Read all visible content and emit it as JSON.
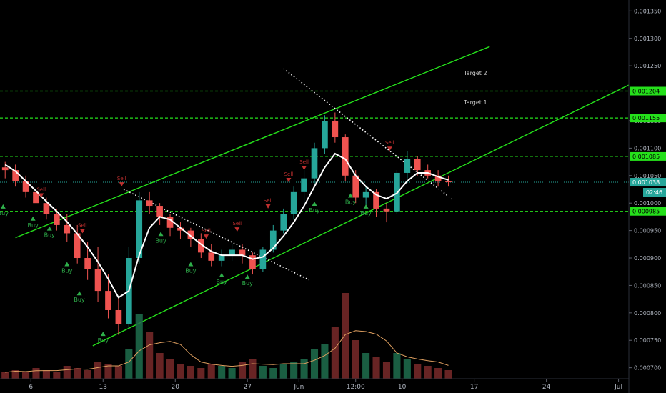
{
  "chart_data": {
    "type": "candlestick",
    "y_range": [
      0.00068,
      0.00137
    ],
    "x_range": [
      0,
      61
    ],
    "y_ticks": [
      "0.001350",
      "0.001300",
      "0.001250",
      "0.001150",
      "0.001100",
      "0.001050",
      "0.001000",
      "0.000950",
      "0.000900",
      "0.000850",
      "0.000800",
      "0.000750",
      "0.000700"
    ],
    "x_ticks": [
      {
        "label": "6",
        "x": 3
      },
      {
        "label": "13",
        "x": 10
      },
      {
        "label": "20",
        "x": 17
      },
      {
        "label": "27",
        "x": 24
      },
      {
        "label": "Jun",
        "x": 29
      },
      {
        "label": "12:00",
        "x": 34.5
      },
      {
        "label": "10",
        "x": 39
      },
      {
        "label": "17",
        "x": 46
      },
      {
        "label": "24",
        "x": 53
      },
      {
        "label": "Jul",
        "x": 60
      }
    ],
    "levels": [
      {
        "value": 0.001204,
        "label": "0.001204",
        "color": "#25e01b"
      },
      {
        "value": 0.001155,
        "label": "0.001155",
        "color": "#25e01b"
      },
      {
        "value": 0.001085,
        "label": "0.001085",
        "color": "#25e01b"
      },
      {
        "value": 0.000985,
        "label": "0.000985",
        "color": "#25e01b"
      }
    ],
    "current_price": {
      "value": 0.001038,
      "label": "0.001038",
      "countdown": "02:46",
      "color": "#26a69a"
    },
    "targets": [
      {
        "label": "Target 2",
        "x": 45,
        "y": 0.001233
      },
      {
        "label": "Target 1",
        "x": 45,
        "y": 0.00118
      }
    ],
    "channel_lines": [
      {
        "x1": 1.5,
        "y1": 0.000937,
        "x2": 47.5,
        "y2": 0.001285
      },
      {
        "x1": 9,
        "y1": 0.00074,
        "x2": 61,
        "y2": 0.001215
      }
    ],
    "resistance_lines": [
      {
        "x1": 12,
        "y1": 0.001025,
        "x2": 30,
        "y2": 0.00086
      },
      {
        "x1": 27.5,
        "y1": 0.001245,
        "x2": 44,
        "y2": 0.001005
      }
    ],
    "ohlc": [
      [
        0.001065,
        0.001075,
        0.001045,
        0.00106
      ],
      [
        0.00106,
        0.00107,
        0.00103,
        0.00104
      ],
      [
        0.00104,
        0.00105,
        0.00101,
        0.00102
      ],
      [
        0.00102,
        0.00103,
        0.00099,
        0.001
      ],
      [
        0.001,
        0.00101,
        0.00097,
        0.00098
      ],
      [
        0.00098,
        0.00099,
        0.00095,
        0.00096
      ],
      [
        0.00096,
        0.00098,
        0.00093,
        0.000945
      ],
      [
        0.000945,
        0.00096,
        0.00089,
        0.0009
      ],
      [
        0.0009,
        0.00093,
        0.00086,
        0.00088
      ],
      [
        0.00088,
        0.00092,
        0.00082,
        0.00084
      ],
      [
        0.00084,
        0.00087,
        0.00079,
        0.000805
      ],
      [
        0.000805,
        0.00083,
        0.00076,
        0.00078
      ],
      [
        0.00078,
        0.00092,
        0.00077,
        0.0009
      ],
      [
        0.0009,
        0.00102,
        0.00089,
        0.001005
      ],
      [
        0.001005,
        0.00102,
        0.00098,
        0.000995
      ],
      [
        0.000995,
        0.001,
        0.00096,
        0.000975
      ],
      [
        0.000975,
        0.00098,
        0.00094,
        0.000955
      ],
      [
        0.000955,
        0.000965,
        0.000935,
        0.00095
      ],
      [
        0.00095,
        0.000955,
        0.00092,
        0.000935
      ],
      [
        0.000935,
        0.000945,
        0.0009,
        0.00091
      ],
      [
        0.00091,
        0.000925,
        0.000885,
        0.000895
      ],
      [
        0.000895,
        0.000915,
        0.000885,
        0.000905
      ],
      [
        0.000905,
        0.000925,
        0.000895,
        0.000915
      ],
      [
        0.000915,
        0.000925,
        0.00089,
        0.000905
      ],
      [
        0.000905,
        0.00091,
        0.00087,
        0.00088
      ],
      [
        0.00088,
        0.00092,
        0.000875,
        0.000915
      ],
      [
        0.000915,
        0.00096,
        0.00091,
        0.00095
      ],
      [
        0.00095,
        0.00099,
        0.000945,
        0.00098
      ],
      [
        0.00098,
        0.00103,
        0.00097,
        0.00102
      ],
      [
        0.00102,
        0.00106,
        0.001,
        0.001045
      ],
      [
        0.001045,
        0.00111,
        0.001035,
        0.0011
      ],
      [
        0.0011,
        0.00116,
        0.00109,
        0.00115
      ],
      [
        0.00115,
        0.001165,
        0.00111,
        0.00112
      ],
      [
        0.00112,
        0.001125,
        0.00104,
        0.00105
      ],
      [
        0.00105,
        0.00106,
        0.001,
        0.00101
      ],
      [
        0.00101,
        0.00103,
        0.000995,
        0.00102
      ],
      [
        0.00102,
        0.001025,
        0.000975,
        0.00099
      ],
      [
        0.00099,
        0.001,
        0.000965,
        0.000985
      ],
      [
        0.000985,
        0.00106,
        0.00098,
        0.001055
      ],
      [
        0.001055,
        0.001095,
        0.001045,
        0.00108
      ],
      [
        0.00108,
        0.001085,
        0.00105,
        0.00106
      ],
      [
        0.00106,
        0.00107,
        0.001045,
        0.00105
      ],
      [
        0.00105,
        0.00106,
        0.00103,
        0.00104
      ],
      [
        0.00104,
        0.00105,
        0.00103,
        0.001038
      ]
    ],
    "ma_line": [
      [
        0,
        0.00107
      ],
      [
        1,
        0.001058
      ],
      [
        2,
        0.00104
      ],
      [
        3,
        0.001022
      ],
      [
        4,
        0.001003
      ],
      [
        5,
        0.000985
      ],
      [
        6,
        0.000966
      ],
      [
        7,
        0.000944
      ],
      [
        8,
        0.00092
      ],
      [
        9,
        0.000893
      ],
      [
        10,
        0.000862
      ],
      [
        11,
        0.000828
      ],
      [
        12,
        0.00084
      ],
      [
        13,
        0.000905
      ],
      [
        14,
        0.000955
      ],
      [
        15,
        0.000975
      ],
      [
        16,
        0.00097
      ],
      [
        17,
        0.000955
      ],
      [
        18,
        0.00094
      ],
      [
        19,
        0.000925
      ],
      [
        20,
        0.000912
      ],
      [
        21,
        0.000905
      ],
      [
        22,
        0.000905
      ],
      [
        23,
        0.000905
      ],
      [
        24,
        0.000898
      ],
      [
        25,
        0.000902
      ],
      [
        26,
        0.000918
      ],
      [
        27,
        0.00094
      ],
      [
        28,
        0.000965
      ],
      [
        29,
        0.000995
      ],
      [
        30,
        0.00103
      ],
      [
        31,
        0.001065
      ],
      [
        32,
        0.00109
      ],
      [
        33,
        0.00108
      ],
      [
        34,
        0.00105
      ],
      [
        35,
        0.00103
      ],
      [
        36,
        0.001015
      ],
      [
        37,
        0.001008
      ],
      [
        38,
        0.001018
      ],
      [
        39,
        0.00104
      ],
      [
        40,
        0.001055
      ],
      [
        41,
        0.001055
      ],
      [
        42,
        0.001048
      ],
      [
        43,
        0.001042
      ]
    ],
    "volume": [
      3,
      4,
      3,
      5,
      4,
      3,
      6,
      5,
      4,
      8,
      7,
      6,
      14,
      30,
      22,
      12,
      9,
      7,
      6,
      5,
      7,
      6,
      5,
      8,
      9,
      6,
      5,
      7,
      8,
      9,
      14,
      16,
      24,
      40,
      18,
      12,
      10,
      8,
      12,
      9,
      7,
      6,
      5,
      4
    ],
    "signals": [
      {
        "type": "buy",
        "label": "Buy",
        "x": 0.3,
        "y": 0.00099
      },
      {
        "type": "buy",
        "label": "Buy",
        "x": 3.2,
        "y": 0.000968
      },
      {
        "type": "sell",
        "label": "Sell",
        "x": 4.0,
        "y": 0.00101
      },
      {
        "type": "buy",
        "label": "Buy",
        "x": 4.8,
        "y": 0.00095
      },
      {
        "type": "buy",
        "label": "Buy",
        "x": 6.5,
        "y": 0.000885
      },
      {
        "type": "sell",
        "label": "Sell",
        "x": 8.0,
        "y": 0.000945
      },
      {
        "type": "buy",
        "label": "Buy",
        "x": 7.7,
        "y": 0.000832
      },
      {
        "type": "buy",
        "label": "Buy",
        "x": 10.0,
        "y": 0.000758
      },
      {
        "type": "sell",
        "label": "Sell",
        "x": 11.8,
        "y": 0.00103
      },
      {
        "type": "buy",
        "label": "Buy",
        "x": 15.6,
        "y": 0.00094
      },
      {
        "type": "buy",
        "label": "Buy",
        "x": 18.5,
        "y": 0.000885
      },
      {
        "type": "sell",
        "label": "Sell",
        "x": 20.0,
        "y": 0.000935
      },
      {
        "type": "buy",
        "label": "Buy",
        "x": 21.5,
        "y": 0.000865
      },
      {
        "type": "buy",
        "label": "Buy",
        "x": 24.0,
        "y": 0.000862
      },
      {
        "type": "sell",
        "label": "Sell",
        "x": 23.0,
        "y": 0.000948
      },
      {
        "type": "sell",
        "label": "Sell",
        "x": 26.0,
        "y": 0.00099
      },
      {
        "type": "sell",
        "label": "Sell",
        "x": 28.0,
        "y": 0.001038
      },
      {
        "type": "sell",
        "label": "Sell",
        "x": 29.5,
        "y": 0.00106
      },
      {
        "type": "buy",
        "label": "Buy",
        "x": 30.5,
        "y": 0.000995
      },
      {
        "type": "buy",
        "label": "Buy",
        "x": 34.0,
        "y": 0.00101
      },
      {
        "type": "sell",
        "label": "Sell",
        "x": 37.8,
        "y": 0.001095
      },
      {
        "type": "buy",
        "label": "Buy",
        "x": 35.5,
        "y": 0.00099
      }
    ]
  }
}
